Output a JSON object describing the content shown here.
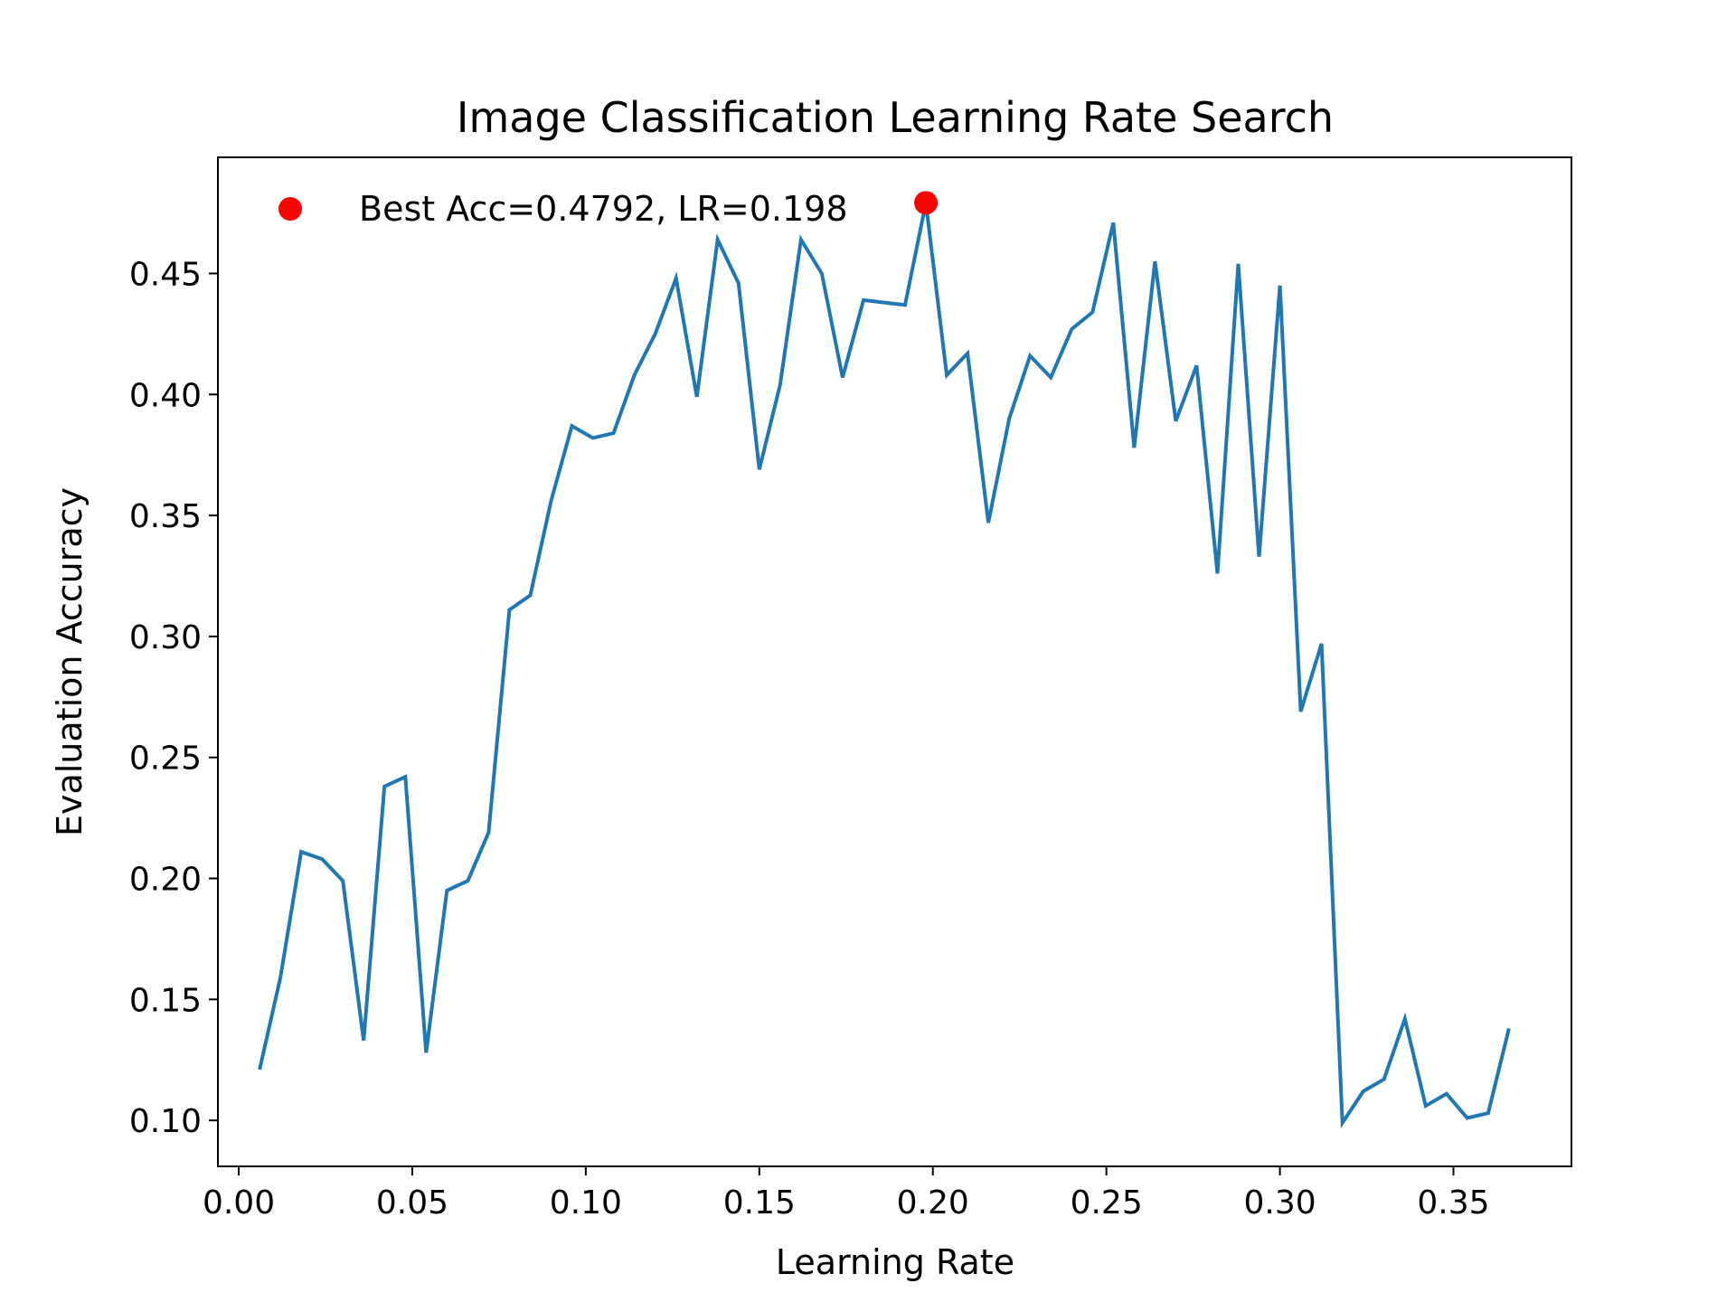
{
  "chart_data": {
    "type": "line",
    "title": "Image Classification Learning Rate Search",
    "xlabel": "Learning Rate",
    "ylabel": "Evaluation Accuracy",
    "xlim": [
      -0.006,
      0.384
    ],
    "ylim": [
      0.081,
      0.498
    ],
    "xticks": [
      0.0,
      0.05,
      0.1,
      0.15,
      0.2,
      0.25,
      0.3,
      0.35
    ],
    "xtick_labels": [
      "0.00",
      "0.05",
      "0.10",
      "0.15",
      "0.20",
      "0.25",
      "0.30",
      "0.35"
    ],
    "yticks": [
      0.1,
      0.15,
      0.2,
      0.25,
      0.3,
      0.35,
      0.4,
      0.45
    ],
    "ytick_labels": [
      "0.10",
      "0.15",
      "0.20",
      "0.25",
      "0.30",
      "0.35",
      "0.40",
      "0.45"
    ],
    "grid": false,
    "legend_position": "top-left",
    "series": [
      {
        "color": "#1f77b4",
        "x": [
          0.006,
          0.012,
          0.018,
          0.024,
          0.03,
          0.036,
          0.042,
          0.048,
          0.054,
          0.06,
          0.066,
          0.072,
          0.078,
          0.084,
          0.09,
          0.096,
          0.102,
          0.108,
          0.114,
          0.12,
          0.126,
          0.132,
          0.138,
          0.144,
          0.15,
          0.156,
          0.162,
          0.168,
          0.174,
          0.18,
          0.186,
          0.192,
          0.198,
          0.204,
          0.21,
          0.216,
          0.222,
          0.228,
          0.234,
          0.24,
          0.246,
          0.252,
          0.258,
          0.264,
          0.27,
          0.276,
          0.282,
          0.288,
          0.294,
          0.3,
          0.306,
          0.312,
          0.318,
          0.324,
          0.33,
          0.336,
          0.342,
          0.348,
          0.354,
          0.36,
          0.366
        ],
        "y": [
          0.121,
          0.159,
          0.211,
          0.208,
          0.199,
          0.133,
          0.238,
          0.242,
          0.128,
          0.195,
          0.199,
          0.219,
          0.311,
          0.317,
          0.356,
          0.387,
          0.382,
          0.384,
          0.408,
          0.425,
          0.448,
          0.399,
          0.464,
          0.446,
          0.369,
          0.404,
          0.464,
          0.45,
          0.407,
          0.439,
          0.438,
          0.437,
          0.4792,
          0.408,
          0.417,
          0.347,
          0.39,
          0.416,
          0.407,
          0.427,
          0.434,
          0.471,
          0.378,
          0.455,
          0.389,
          0.412,
          0.326,
          0.454,
          0.333,
          0.445,
          0.269,
          0.297,
          0.099,
          0.112,
          0.117,
          0.142,
          0.106,
          0.111,
          0.101,
          0.103,
          0.138
        ]
      }
    ],
    "best_point": {
      "label": "Best Acc=0.4792, LR=0.198",
      "x": 0.198,
      "y": 0.4792,
      "color": "#ff0000"
    }
  }
}
